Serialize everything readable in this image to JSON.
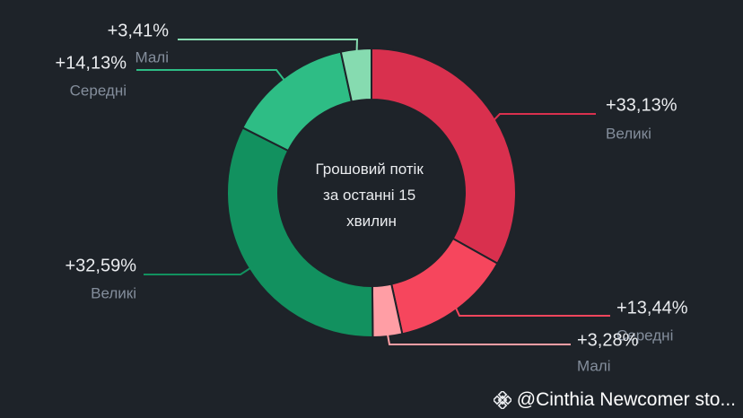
{
  "chart_data": {
    "type": "pie",
    "center_text": [
      "Грошовий потік",
      "за останні 15",
      "хвилин"
    ],
    "slices": [
      {
        "label": "+33,13%",
        "category": "Великі",
        "value": 33.13,
        "color": "#d9304e"
      },
      {
        "label": "+13,44%",
        "category": "Середні",
        "value": 13.44,
        "color": "#f6465d"
      },
      {
        "label": "+3,28%",
        "category": "Малі",
        "value": 3.28,
        "color": "#ff9ea5"
      },
      {
        "label": "+32,59%",
        "category": "Великі",
        "value": 32.59,
        "color": "#12915f"
      },
      {
        "label": "+14,13%",
        "category": "Середні",
        "value": 14.13,
        "color": "#2ebd85"
      },
      {
        "label": "+3,41%",
        "category": "Малі",
        "value": 3.41,
        "color": "#86dbb0"
      }
    ]
  },
  "watermark": {
    "text": "@Cinthia Newcomer sto..."
  }
}
